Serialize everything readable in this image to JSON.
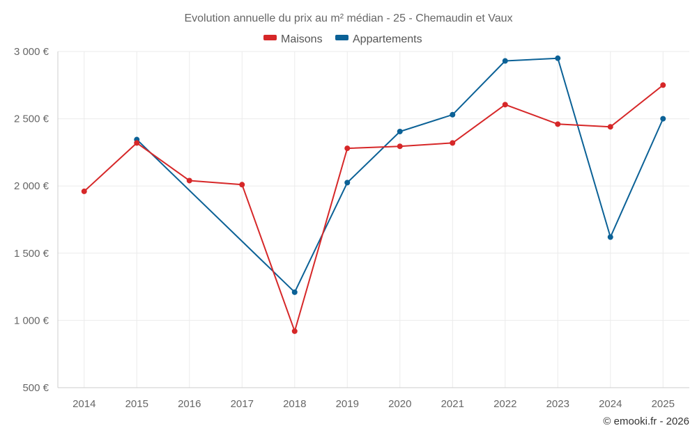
{
  "chart_data": {
    "type": "line",
    "title": "Evolution annuelle du prix au m² médian - 25 - Chemaudin et Vaux",
    "xlabel": "",
    "ylabel": "",
    "categories": [
      "2014",
      "2015",
      "2016",
      "2017",
      "2018",
      "2019",
      "2020",
      "2021",
      "2022",
      "2023",
      "2024",
      "2025"
    ],
    "ylim": [
      500,
      3000
    ],
    "y_ticks": [
      500,
      1000,
      1500,
      2000,
      2500,
      3000
    ],
    "y_tick_labels": [
      "500 €",
      "1 000 €",
      "1 500 €",
      "2 000 €",
      "2 500 €",
      "3 000 €"
    ],
    "grid": true,
    "legend_position": "top-center",
    "series": [
      {
        "name": "Maisons",
        "color": "#d62728",
        "values": [
          1960,
          2320,
          2040,
          2010,
          920,
          2280,
          2295,
          2320,
          2605,
          2460,
          2440,
          2750
        ]
      },
      {
        "name": "Appartements",
        "color": "#0b6196",
        "values": [
          null,
          2345,
          null,
          null,
          1210,
          2025,
          2405,
          2530,
          2930,
          2950,
          1620,
          2500
        ]
      }
    ]
  },
  "credit": "© emooki.fr - 2026"
}
